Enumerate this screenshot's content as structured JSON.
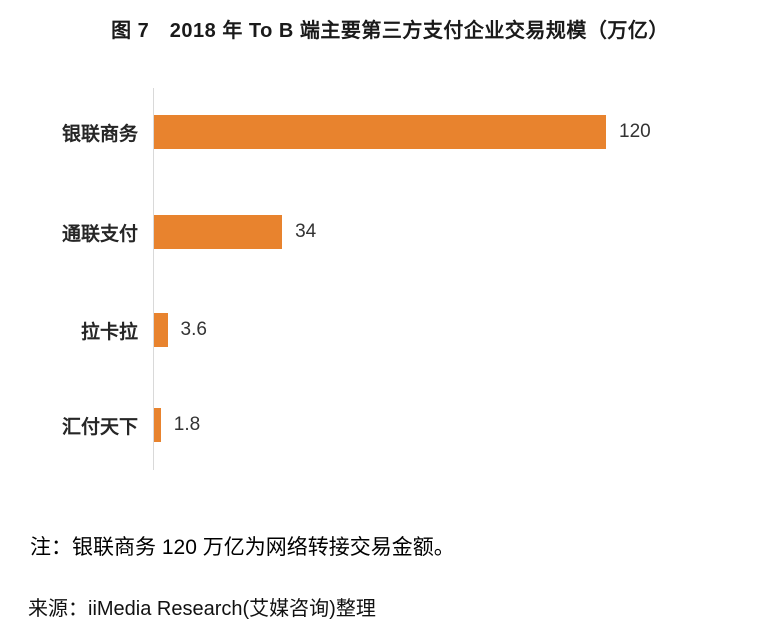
{
  "title": "图 7　2018 年 To B 端主要第三方支付企业交易规模（万亿）",
  "chart_data": {
    "type": "bar",
    "orientation": "horizontal",
    "title": "图 7　2018 年 To B 端主要第三方支付企业交易规模（万亿）",
    "categories": [
      "银联商务",
      "通联支付",
      "拉卡拉",
      "汇付天下"
    ],
    "values": [
      120,
      34,
      3.6,
      1.8
    ],
    "value_labels": [
      "120",
      "34",
      "3.6",
      "1.8"
    ],
    "xlabel": "",
    "ylabel": "",
    "xlim": [
      0,
      130
    ],
    "grid": false,
    "legend": false,
    "bar_color": "#e8832e",
    "axis_color": "#d9d9d9"
  },
  "note": "注：银联商务 120 万亿为网络转接交易金额。",
  "source": "来源：iiMedia Research(艾媒咨询)整理"
}
